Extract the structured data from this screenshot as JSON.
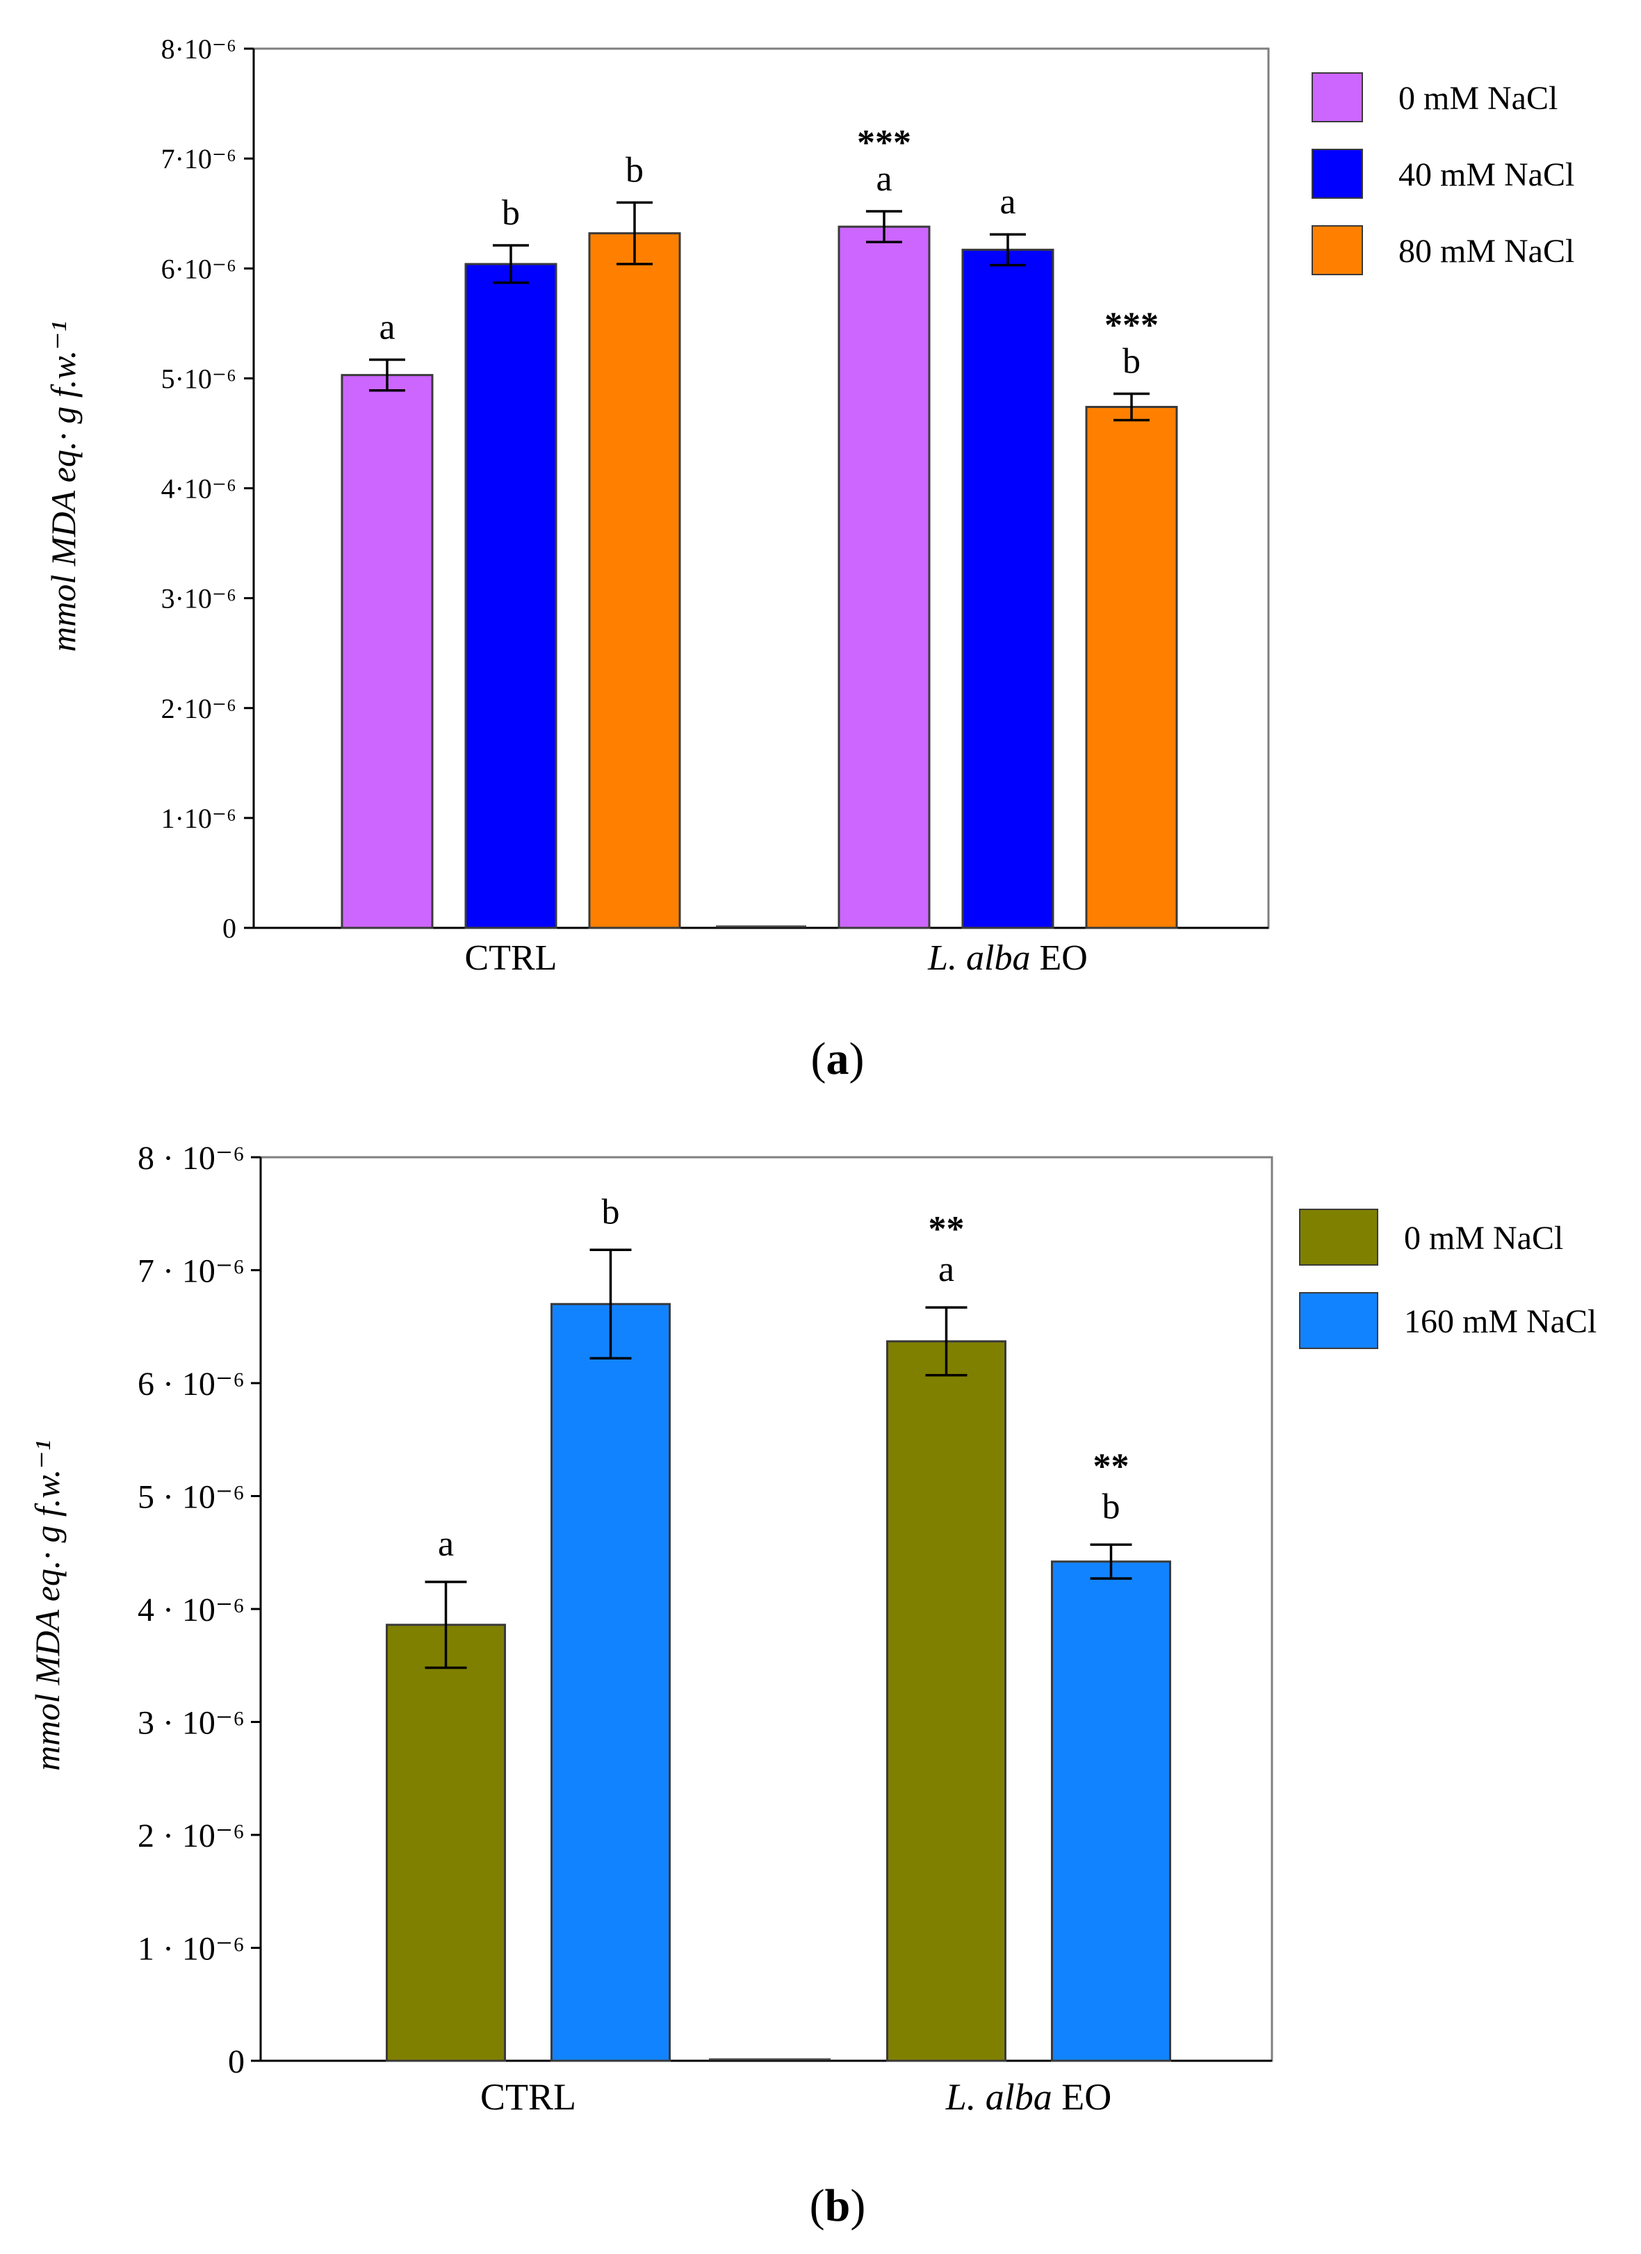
{
  "chart_data": [
    {
      "type": "bar",
      "panel_label": "(a)",
      "ylabel": "mmol MDA eq.· g f.w.⁻¹",
      "ylim": [
        0,
        8e-06
      ],
      "y_ticks": [
        {
          "value": 0,
          "label": "0"
        },
        {
          "value": 1e-06,
          "label": "1·10⁻⁶"
        },
        {
          "value": 2e-06,
          "label": "2·10⁻⁶"
        },
        {
          "value": 3e-06,
          "label": "3·10⁻⁶"
        },
        {
          "value": 4e-06,
          "label": "4·10⁻⁶"
        },
        {
          "value": 5e-06,
          "label": "5·10⁻⁶"
        },
        {
          "value": 6e-06,
          "label": "6·10⁻⁶"
        },
        {
          "value": 7e-06,
          "label": "7·10⁻⁶"
        },
        {
          "value": 8e-06,
          "label": "8·10⁻⁶"
        }
      ],
      "categories": [
        "CTRL",
        "L. alba EO"
      ],
      "category_italic_part": [
        "",
        "L. alba"
      ],
      "grid": false,
      "legend_position": "right",
      "series": [
        {
          "name": "0 mM NaCl",
          "color": "#cc66ff",
          "values": [
            5.03e-06,
            6.38e-06
          ],
          "errors": [
            1.4e-07,
            1.4e-07
          ],
          "letters": [
            "a",
            "a"
          ],
          "stars": [
            "",
            "***"
          ]
        },
        {
          "name": "40 mM NaCl",
          "color": "#0000ff",
          "values": [
            6.04e-06,
            6.17e-06
          ],
          "errors": [
            1.7e-07,
            1.4e-07
          ],
          "letters": [
            "b",
            "a"
          ],
          "stars": [
            "",
            ""
          ]
        },
        {
          "name": "80 mM NaCl",
          "color": "#ff8000",
          "values": [
            6.32e-06,
            4.74e-06
          ],
          "errors": [
            2.8e-07,
            1.2e-07
          ],
          "letters": [
            "b",
            "b"
          ],
          "stars": [
            "",
            "***"
          ]
        }
      ]
    },
    {
      "type": "bar",
      "panel_label": "(b)",
      "ylabel": "mmol MDA eq.· g f.w.⁻¹",
      "ylim": [
        0,
        8e-06
      ],
      "y_ticks": [
        {
          "value": 0,
          "label": "0"
        },
        {
          "value": 1e-06,
          "label": "1 · 10⁻⁶"
        },
        {
          "value": 2e-06,
          "label": "2 · 10⁻⁶"
        },
        {
          "value": 3e-06,
          "label": "3 · 10⁻⁶"
        },
        {
          "value": 4e-06,
          "label": "4 · 10⁻⁶"
        },
        {
          "value": 5e-06,
          "label": "5 · 10⁻⁶"
        },
        {
          "value": 6e-06,
          "label": "6 · 10⁻⁶"
        },
        {
          "value": 7e-06,
          "label": "7 · 10⁻⁶"
        },
        {
          "value": 8e-06,
          "label": "8 · 10⁻⁶"
        }
      ],
      "categories": [
        "CTRL",
        "L. alba EO"
      ],
      "category_italic_part": [
        "",
        "L. alba"
      ],
      "grid": false,
      "legend_position": "right",
      "series": [
        {
          "name": "0 mM NaCl",
          "color": "#808000",
          "values": [
            3.86e-06,
            6.37e-06
          ],
          "errors": [
            3.8e-07,
            3e-07
          ],
          "letters": [
            "a",
            "a"
          ],
          "stars": [
            "",
            "**"
          ]
        },
        {
          "name": "160 mM NaCl",
          "color": "#1283ff",
          "values": [
            6.7e-06,
            4.42e-06
          ],
          "errors": [
            4.8e-07,
            1.5e-07
          ],
          "letters": [
            "b",
            "b"
          ],
          "stars": [
            "",
            "**"
          ]
        }
      ]
    }
  ]
}
